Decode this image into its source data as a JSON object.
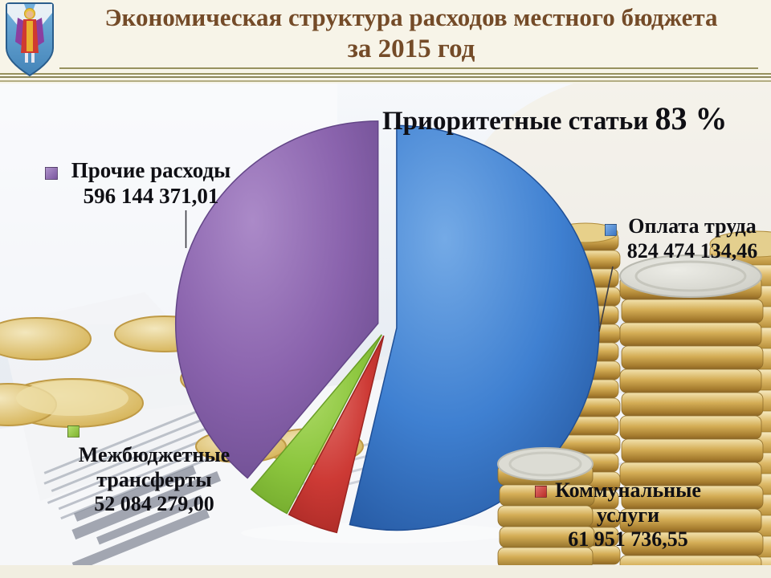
{
  "slide": {
    "title_line1": "Экономическая структура расходов местного бюджета",
    "title_line2": "за 2015 год",
    "annotation": {
      "text": "Приоритетные статьи",
      "value": "83 %"
    },
    "emblem": "city-coat-of-arms"
  },
  "colors": {
    "title_brown": "#744b28",
    "header_cream": "#f7f4e8",
    "separator_olive": "#97915f",
    "label_black": "#0f0f14",
    "salary_blue": "#3f80d1",
    "utilities_red": "#cd3a35",
    "transfers_green": "#8cc63e",
    "other_purple": "#8a63ad"
  },
  "chart_data": {
    "type": "pie",
    "title": "Экономическая структура расходов местного бюджета за 2015 год",
    "start_angle_deg": 0,
    "direction": "clockwise",
    "exploded": true,
    "annotation_priority_share": "83 %",
    "slices": [
      {
        "label": "Оплата труда",
        "value": 824474134.46,
        "value_text": "824 474 134,46",
        "color": "#3f80d1",
        "color_light": "#74aae6",
        "color_dark": "#1f4f96"
      },
      {
        "label": "Коммунальные услуги",
        "value": 61951736.55,
        "value_text": "61 951 736,55",
        "color": "#cd3a35",
        "color_light": "#e2726d",
        "color_dark": "#9c2420"
      },
      {
        "label": "Межбюджетные трансферты",
        "value": 52084279.0,
        "value_text": "52 084 279,00",
        "color": "#8cc63e",
        "color_light": "#b2dd6d",
        "color_dark": "#699e26"
      },
      {
        "label": "Прочие расходы",
        "value": 596144371.01,
        "value_text": "596 144 371,01",
        "color": "#8a63ad",
        "color_light": "#ab8ac8",
        "color_dark": "#634687"
      }
    ]
  }
}
